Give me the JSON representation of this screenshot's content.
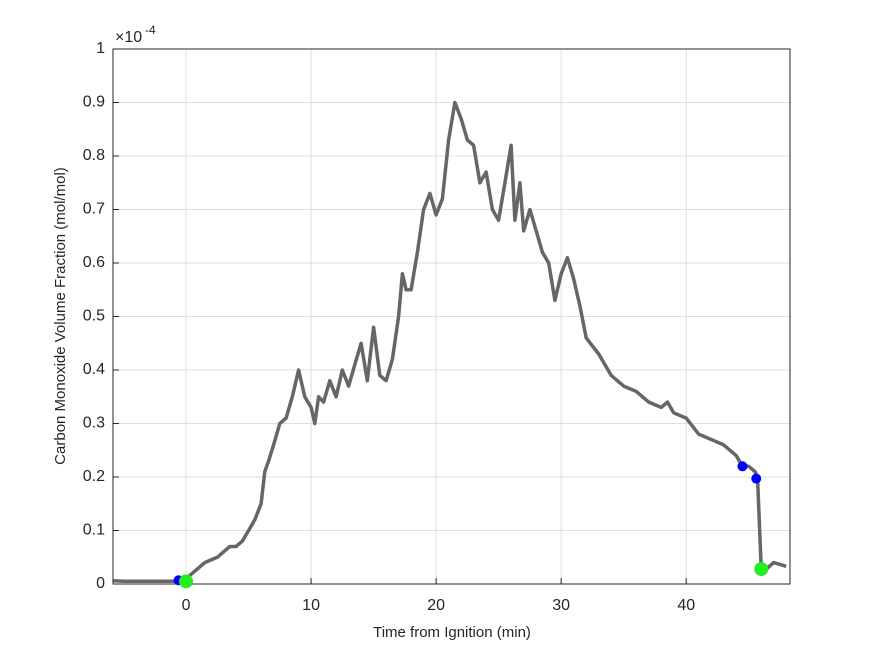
{
  "chart_data": {
    "type": "line",
    "xlabel": "Time from Ignition (min)",
    "ylabel": "Carbon Monoxide Volume Fraction (mol/mol)",
    "y_exponent_base": "×10",
    "y_exponent": "-4",
    "xlim": [
      -5.84,
      48.3
    ],
    "ylim": [
      0,
      1
    ],
    "xticks": [
      0,
      10,
      20,
      30,
      40
    ],
    "yticks": [
      0,
      0.1,
      0.2,
      0.3,
      0.4,
      0.5,
      0.6,
      0.7,
      0.8,
      0.9,
      1
    ],
    "grid": true,
    "series": [
      {
        "color": "#666666",
        "x": [
          -5.8,
          -5,
          -4,
          -3,
          -2,
          -1,
          -0.5,
          0,
          0.5,
          1,
          1.5,
          2,
          2.5,
          3,
          3.5,
          4,
          4.5,
          5,
          5.5,
          6,
          6.3,
          6.6,
          7,
          7.5,
          8,
          8.5,
          9,
          9.5,
          10,
          10.3,
          10.6,
          11,
          11.5,
          12,
          12.5,
          13,
          13.5,
          14,
          14.5,
          15,
          15.5,
          16,
          16.5,
          17,
          17.3,
          17.6,
          18,
          18.5,
          19,
          19.5,
          20,
          20.5,
          21,
          21.5,
          22,
          22.5,
          23,
          23.5,
          24,
          24.5,
          25,
          25.5,
          26,
          26.3,
          26.7,
          27,
          27.5,
          28,
          28.5,
          29,
          29.5,
          30,
          30.5,
          31,
          31.5,
          32,
          33,
          34,
          35,
          36,
          37,
          38,
          38.5,
          39,
          40,
          41,
          42,
          43,
          44,
          44.5,
          45,
          45.5,
          45.7,
          46,
          46.5,
          47,
          48
        ],
        "values": [
          0.006,
          0.005,
          0.005,
          0.005,
          0.005,
          0.005,
          0.007,
          0.01,
          0.02,
          0.03,
          0.04,
          0.045,
          0.05,
          0.06,
          0.07,
          0.07,
          0.08,
          0.1,
          0.12,
          0.15,
          0.21,
          0.23,
          0.26,
          0.3,
          0.31,
          0.35,
          0.4,
          0.35,
          0.33,
          0.3,
          0.35,
          0.34,
          0.38,
          0.35,
          0.4,
          0.37,
          0.41,
          0.45,
          0.38,
          0.48,
          0.39,
          0.38,
          0.42,
          0.5,
          0.58,
          0.55,
          0.55,
          0.62,
          0.7,
          0.73,
          0.69,
          0.72,
          0.83,
          0.9,
          0.87,
          0.83,
          0.82,
          0.75,
          0.77,
          0.7,
          0.68,
          0.75,
          0.82,
          0.68,
          0.75,
          0.66,
          0.7,
          0.66,
          0.62,
          0.6,
          0.53,
          0.58,
          0.61,
          0.57,
          0.52,
          0.46,
          0.43,
          0.39,
          0.37,
          0.36,
          0.34,
          0.33,
          0.34,
          0.32,
          0.31,
          0.28,
          0.27,
          0.26,
          0.24,
          0.22,
          0.22,
          0.21,
          0.2,
          0.03,
          0.03,
          0.04,
          0.033
        ]
      }
    ],
    "markers": [
      {
        "color": "#0000ff",
        "size": 5,
        "x": [
          -0.6,
          44.5,
          45.6
        ],
        "values": [
          0.007,
          0.22,
          0.197
        ]
      },
      {
        "color": "#22ee22",
        "size": 7,
        "x": [
          0,
          46
        ],
        "values": [
          0.005,
          0.028
        ]
      }
    ]
  }
}
